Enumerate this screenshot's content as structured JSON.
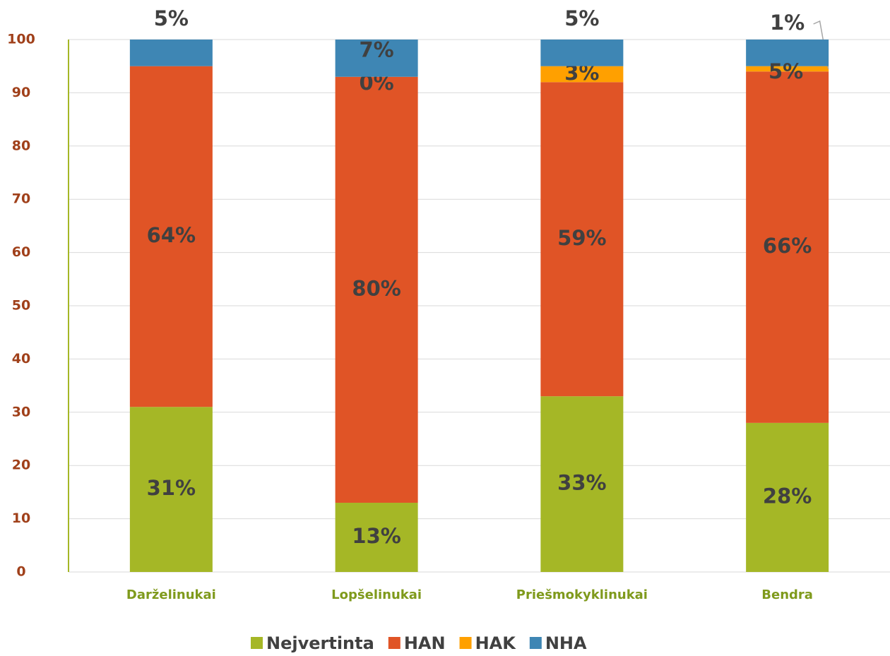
{
  "chart_data": {
    "type": "stacked_bar",
    "categories": [
      "Darželinukai",
      "Lopšelinukai",
      "Priešmokyklinukai",
      "Bendra"
    ],
    "series": [
      {
        "name": "Nejvertinta",
        "color": "#a5b726",
        "values": [
          31,
          13,
          33,
          28
        ],
        "value_labels": [
          "31%",
          "13%",
          "33%",
          "28%"
        ]
      },
      {
        "name": "HAN",
        "color": "#e05426",
        "values": [
          64,
          80,
          59,
          66
        ],
        "value_labels": [
          "64%",
          "80%",
          "59%",
          "66%"
        ]
      },
      {
        "name": "HAK",
        "color": "#ffa000",
        "values": [
          null,
          0,
          3,
          1
        ],
        "value_labels": [
          null,
          "0%",
          "3%",
          "1%"
        ]
      },
      {
        "name": "NHA",
        "color": "#3e86b4",
        "values": [
          5,
          7,
          5,
          5
        ],
        "value_labels": [
          "5%",
          "7%",
          "5%",
          "5%"
        ]
      }
    ],
    "ylim": [
      0,
      100
    ],
    "yticks": [
      0,
      10,
      20,
      30,
      40,
      50,
      60,
      70,
      80,
      90,
      100
    ],
    "grid": true,
    "legend": "bottom"
  }
}
